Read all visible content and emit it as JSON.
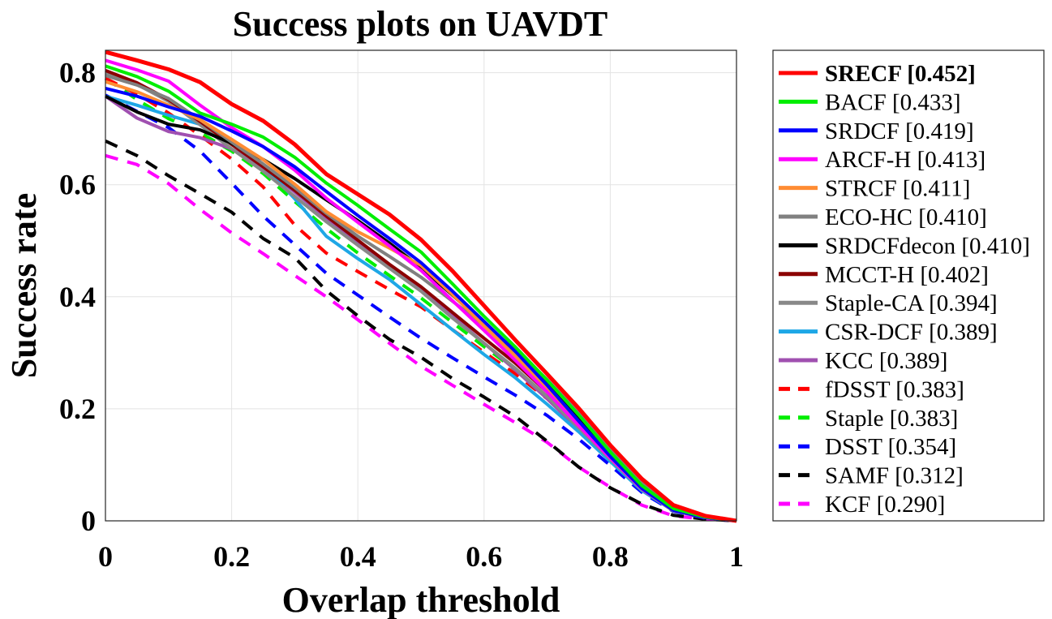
{
  "chart_data": {
    "type": "line",
    "title": "Success plots on UAVDT",
    "xlabel": "Overlap threshold",
    "ylabel": "Success rate",
    "xlim": [
      0,
      1
    ],
    "ylim": [
      0,
      0.84
    ],
    "xticks": [
      0,
      0.2,
      0.4,
      0.6,
      0.8,
      1
    ],
    "xtick_labels": [
      "0",
      "0.2",
      "0.4",
      "0.6",
      "0.8",
      "1"
    ],
    "yticks": [
      0,
      0.2,
      0.4,
      0.6,
      0.8
    ],
    "ytick_labels": [
      "0",
      "0.2",
      "0.4",
      "0.6",
      "0.8"
    ],
    "grid": true,
    "legend_position": "outside-right",
    "x": [
      0,
      0.05,
      0.1,
      0.15,
      0.2,
      0.25,
      0.3,
      0.35,
      0.4,
      0.45,
      0.5,
      0.55,
      0.6,
      0.65,
      0.7,
      0.75,
      0.8,
      0.85,
      0.9,
      0.95,
      1
    ],
    "series": [
      {
        "name": "SRECF [0.452]",
        "color": "#ff0000",
        "dash": "solid",
        "bold": true,
        "values": [
          0.837,
          0.822,
          0.806,
          0.783,
          0.744,
          0.714,
          0.672,
          0.619,
          0.583,
          0.547,
          0.502,
          0.446,
          0.384,
          0.322,
          0.262,
          0.201,
          0.135,
          0.075,
          0.028,
          0.009,
          0.0
        ]
      },
      {
        "name": "BACF [0.433]",
        "color": "#00ee00",
        "dash": "solid",
        "values": [
          0.812,
          0.793,
          0.767,
          0.728,
          0.708,
          0.685,
          0.649,
          0.603,
          0.563,
          0.521,
          0.48,
          0.423,
          0.365,
          0.31,
          0.251,
          0.189,
          0.123,
          0.063,
          0.022,
          0.007,
          0.0
        ]
      },
      {
        "name": "SRDCF [0.419]",
        "color": "#0000ff",
        "dash": "solid",
        "values": [
          0.772,
          0.758,
          0.739,
          0.722,
          0.696,
          0.668,
          0.632,
          0.588,
          0.545,
          0.504,
          0.461,
          0.41,
          0.356,
          0.302,
          0.242,
          0.178,
          0.115,
          0.058,
          0.019,
          0.006,
          0.0
        ]
      },
      {
        "name": "ARCF-H [0.413]",
        "color": "#ff00ff",
        "dash": "solid",
        "values": [
          0.822,
          0.805,
          0.785,
          0.742,
          0.702,
          0.668,
          0.626,
          0.576,
          0.533,
          0.491,
          0.447,
          0.393,
          0.34,
          0.286,
          0.23,
          0.17,
          0.112,
          0.057,
          0.019,
          0.006,
          0.0
        ]
      },
      {
        "name": "STRCF [0.411]",
        "color": "#ff8c33",
        "dash": "solid",
        "values": [
          0.784,
          0.766,
          0.742,
          0.716,
          0.681,
          0.645,
          0.601,
          0.552,
          0.516,
          0.487,
          0.456,
          0.404,
          0.348,
          0.294,
          0.236,
          0.177,
          0.116,
          0.059,
          0.02,
          0.006,
          0.0
        ]
      },
      {
        "name": "ECO-HC [0.410]",
        "color": "#808080",
        "dash": "solid",
        "values": [
          0.795,
          0.778,
          0.754,
          0.716,
          0.676,
          0.637,
          0.595,
          0.549,
          0.508,
          0.472,
          0.435,
          0.392,
          0.349,
          0.306,
          0.252,
          0.192,
          0.13,
          0.068,
          0.023,
          0.007,
          0.0
        ]
      },
      {
        "name": "SRDCFdecon [0.410]",
        "color": "#000000",
        "dash": "solid",
        "values": [
          0.758,
          0.73,
          0.708,
          0.698,
          0.674,
          0.645,
          0.611,
          0.573,
          0.536,
          0.496,
          0.452,
          0.403,
          0.352,
          0.302,
          0.243,
          0.182,
          0.12,
          0.061,
          0.02,
          0.006,
          0.0
        ]
      },
      {
        "name": "MCCT-H [0.402]",
        "color": "#8b0000",
        "dash": "solid",
        "values": [
          0.804,
          0.782,
          0.752,
          0.713,
          0.672,
          0.632,
          0.59,
          0.544,
          0.501,
          0.458,
          0.418,
          0.372,
          0.326,
          0.281,
          0.23,
          0.172,
          0.114,
          0.058,
          0.019,
          0.006,
          0.0
        ]
      },
      {
        "name": "Staple-CA [0.394]",
        "color": "#888888",
        "dash": "solid",
        "values": [
          0.798,
          0.779,
          0.749,
          0.707,
          0.664,
          0.624,
          0.579,
          0.534,
          0.492,
          0.451,
          0.41,
          0.362,
          0.317,
          0.272,
          0.222,
          0.166,
          0.11,
          0.056,
          0.018,
          0.006,
          0.0
        ]
      },
      {
        "name": "CSR-DCF [0.389]",
        "color": "#1ea7e6",
        "dash": "solid",
        "values": [
          0.758,
          0.742,
          0.724,
          0.708,
          0.68,
          0.635,
          0.575,
          0.508,
          0.468,
          0.431,
          0.386,
          0.341,
          0.297,
          0.255,
          0.208,
          0.159,
          0.106,
          0.054,
          0.018,
          0.006,
          0.0
        ]
      },
      {
        "name": "KCC [0.389]",
        "color": "#a050b0",
        "dash": "solid",
        "values": [
          0.758,
          0.719,
          0.695,
          0.684,
          0.664,
          0.63,
          0.587,
          0.541,
          0.497,
          0.456,
          0.414,
          0.366,
          0.317,
          0.269,
          0.218,
          0.163,
          0.108,
          0.055,
          0.018,
          0.006,
          0.0
        ]
      },
      {
        "name": "fDSST [0.383]",
        "color": "#ff0000",
        "dash": "dashed",
        "values": [
          0.79,
          0.762,
          0.728,
          0.688,
          0.646,
          0.596,
          0.528,
          0.478,
          0.445,
          0.413,
          0.382,
          0.341,
          0.301,
          0.262,
          0.218,
          0.165,
          0.11,
          0.056,
          0.018,
          0.006,
          0.0
        ]
      },
      {
        "name": "Staple [0.383]",
        "color": "#00ee00",
        "dash": "dashed",
        "values": [
          0.79,
          0.752,
          0.718,
          0.693,
          0.66,
          0.62,
          0.57,
          0.522,
          0.478,
          0.438,
          0.398,
          0.354,
          0.311,
          0.269,
          0.222,
          0.168,
          0.112,
          0.057,
          0.018,
          0.006,
          0.0
        ]
      },
      {
        "name": "DSST [0.354]",
        "color": "#0000ff",
        "dash": "dashed",
        "values": [
          0.76,
          0.731,
          0.702,
          0.66,
          0.603,
          0.544,
          0.493,
          0.442,
          0.403,
          0.364,
          0.326,
          0.291,
          0.257,
          0.224,
          0.188,
          0.146,
          0.099,
          0.051,
          0.017,
          0.005,
          0.0
        ]
      },
      {
        "name": "SAMF [0.312]",
        "color": "#000000",
        "dash": "dashed",
        "values": [
          0.678,
          0.652,
          0.616,
          0.584,
          0.551,
          0.504,
          0.47,
          0.411,
          0.366,
          0.324,
          0.292,
          0.254,
          0.221,
          0.186,
          0.142,
          0.096,
          0.059,
          0.03,
          0.01,
          0.003,
          0.0
        ]
      },
      {
        "name": "KCF [0.290]",
        "color": "#ff00ff",
        "dash": "dashed",
        "values": [
          0.652,
          0.636,
          0.602,
          0.556,
          0.514,
          0.477,
          0.438,
          0.4,
          0.359,
          0.317,
          0.276,
          0.242,
          0.208,
          0.175,
          0.14,
          0.096,
          0.06,
          0.028,
          0.009,
          0.003,
          0.0
        ]
      }
    ]
  }
}
